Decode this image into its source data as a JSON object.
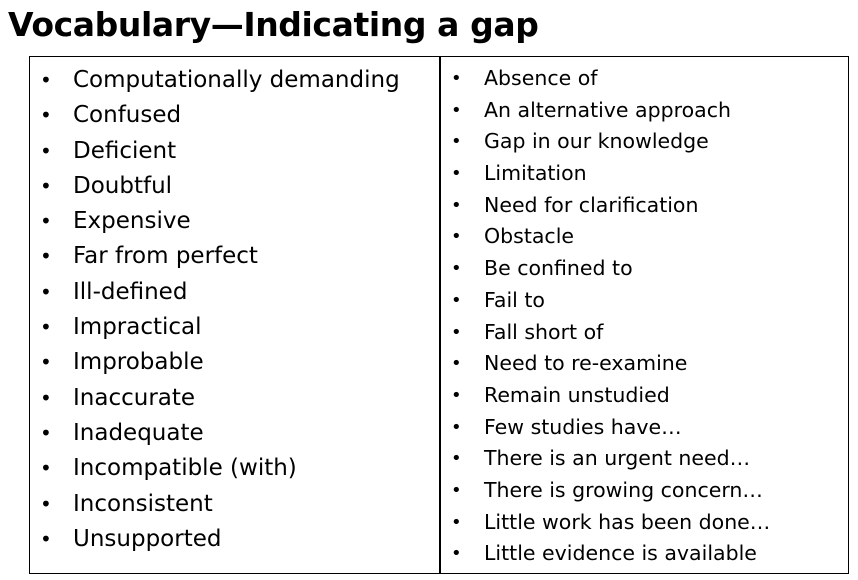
{
  "title": "Vocabulary—Indicating a gap",
  "bullet_glyph": "•",
  "left_column": [
    "Computationally demanding",
    "Confused",
    "Deficient",
    "Doubtful",
    "Expensive",
    "Far from perfect",
    "Ill-defined",
    "Impractical",
    "Improbable",
    "Inaccurate",
    "Inadequate",
    "Incompatible (with)",
    "Inconsistent",
    "Unsupported"
  ],
  "right_column": [
    "Absence of",
    "An alternative approach",
    "Gap in our knowledge",
    "Limitation",
    "Need for clarification",
    "Obstacle",
    "Be confined to",
    "Fail to",
    "Fall short of",
    "Need to re-examine",
    "Remain unstudied",
    "Few studies have…",
    "There is an urgent need…",
    "There is growing concern…",
    "Little work has been done…",
    "Little evidence is available"
  ]
}
